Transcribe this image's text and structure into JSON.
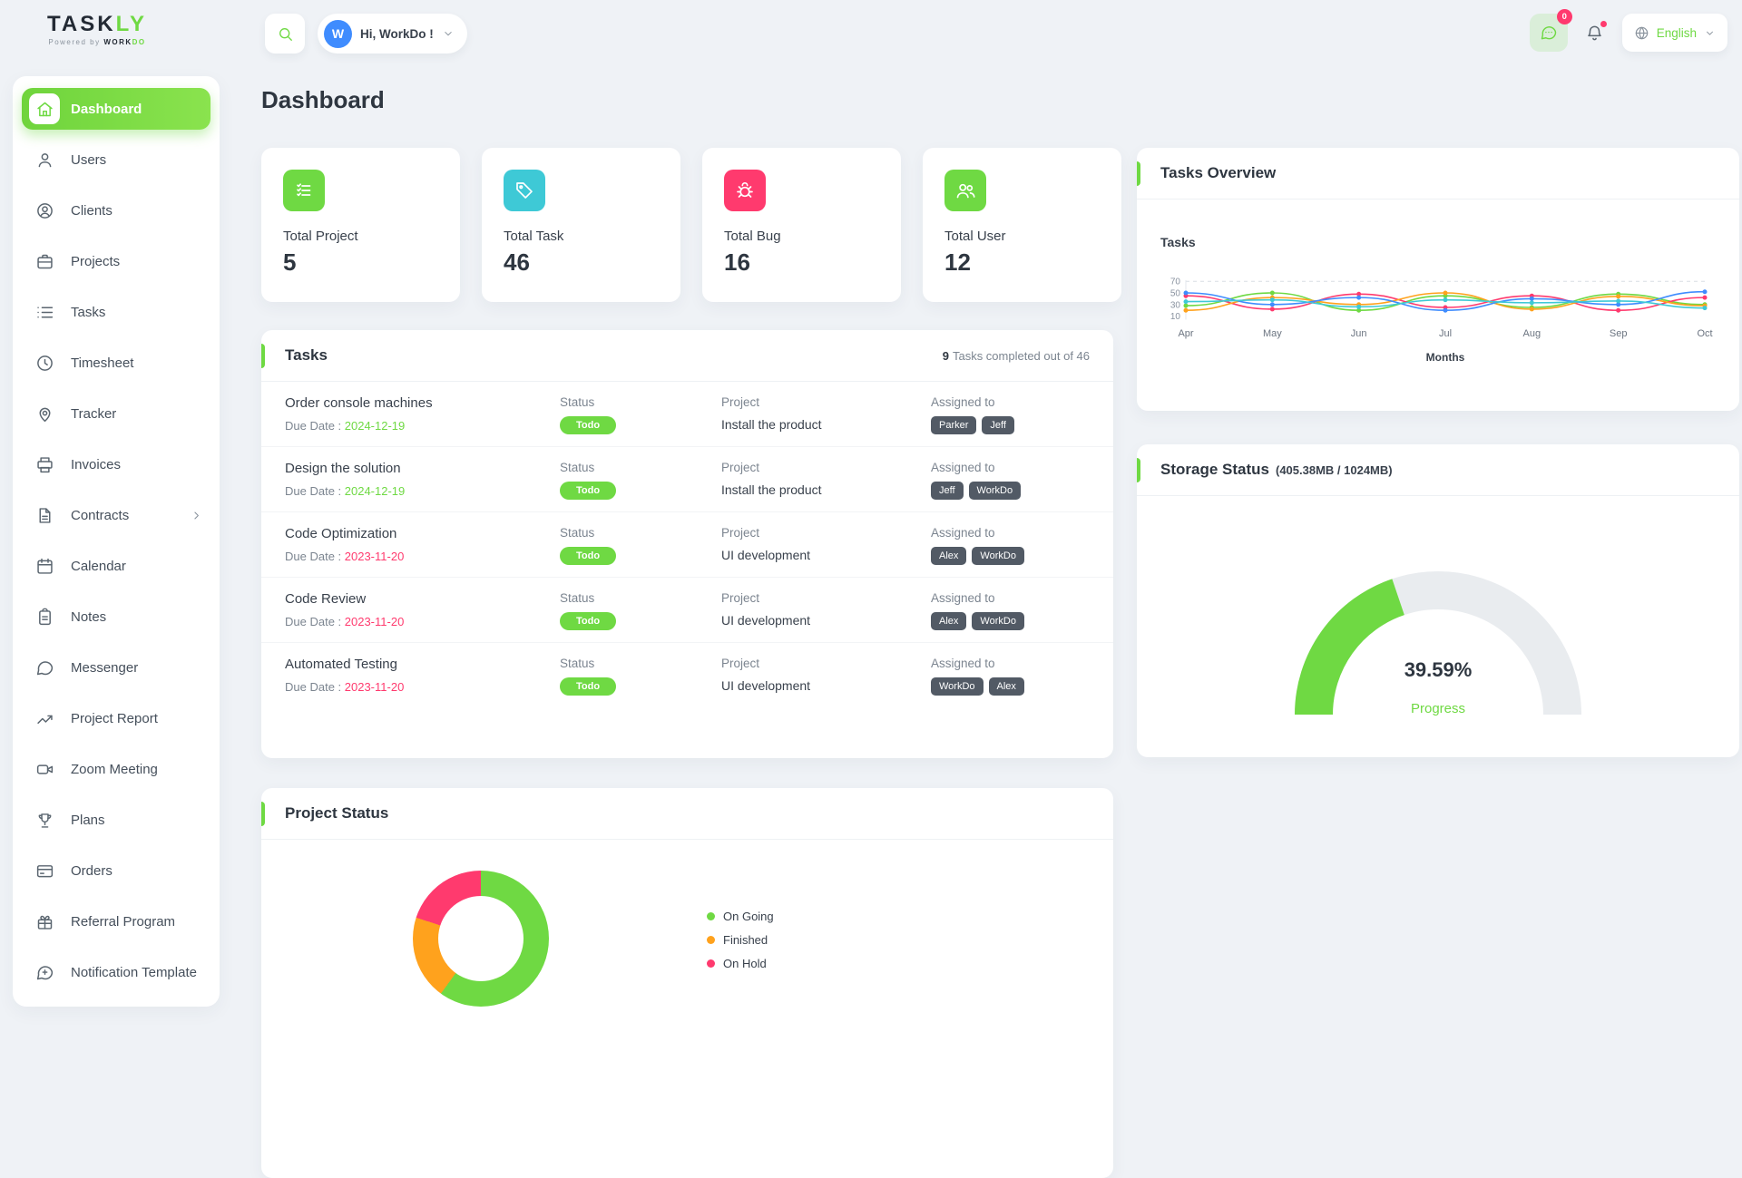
{
  "colors": {
    "accent": "#6fd943",
    "danger": "#ff3a6e",
    "warning": "#ffa21d",
    "info": "#3ec9d6",
    "chip_dark": "#525a65",
    "avatar_bg": "#3f8cfe"
  },
  "header": {
    "logo_main": "TASK",
    "logo_accent": "LY",
    "logo_sub_prefix": "Powered by ",
    "logo_sub_brand": "WORK",
    "logo_sub_brand_accent": "DO",
    "greeting": "Hi, WorkDo !",
    "avatar_letter": "W",
    "chat_badge": "0",
    "language": "English"
  },
  "sidebar": {
    "items": [
      {
        "label": "Dashboard",
        "icon": "home",
        "active": true
      },
      {
        "label": "Users",
        "icon": "user"
      },
      {
        "label": "Clients",
        "icon": "user-circle"
      },
      {
        "label": "Projects",
        "icon": "briefcase"
      },
      {
        "label": "Tasks",
        "icon": "list"
      },
      {
        "label": "Timesheet",
        "icon": "clock"
      },
      {
        "label": "Tracker",
        "icon": "pin"
      },
      {
        "label": "Invoices",
        "icon": "printer"
      },
      {
        "label": "Contracts",
        "icon": "file",
        "chevron": true
      },
      {
        "label": "Calendar",
        "icon": "calendar"
      },
      {
        "label": "Notes",
        "icon": "clipboard"
      },
      {
        "label": "Messenger",
        "icon": "message"
      },
      {
        "label": "Project Report",
        "icon": "chart-up"
      },
      {
        "label": "Zoom Meeting",
        "icon": "video"
      },
      {
        "label": "Plans",
        "icon": "trophy"
      },
      {
        "label": "Orders",
        "icon": "card"
      },
      {
        "label": "Referral Program",
        "icon": "gift"
      },
      {
        "label": "Notification Template",
        "icon": "message-plus"
      }
    ]
  },
  "page_title": "Dashboard",
  "stats": [
    {
      "label": "Total Project",
      "value": "5",
      "icon": "list-check",
      "color": "#6fd943"
    },
    {
      "label": "Total Task",
      "value": "46",
      "icon": "tag",
      "color": "#3ec9d6"
    },
    {
      "label": "Total Bug",
      "value": "16",
      "icon": "bug",
      "color": "#ff3a6e"
    },
    {
      "label": "Total User",
      "value": "12",
      "icon": "users-group",
      "color": "#6fd943"
    }
  ],
  "tasks_section": {
    "title": "Tasks",
    "summary_count": "9",
    "summary_text": "Tasks completed out of 46",
    "labels": {
      "due": "Due Date :",
      "status": "Status",
      "project": "Project",
      "assigned": "Assigned to"
    },
    "rows": [
      {
        "name": "Order console machines",
        "due": "2024-12-19",
        "due_state": "ok",
        "status": "Todo",
        "project": "Install the product",
        "assignees": [
          "Parker",
          "Jeff"
        ]
      },
      {
        "name": "Design the solution",
        "due": "2024-12-19",
        "due_state": "ok",
        "status": "Todo",
        "project": "Install the product",
        "assignees": [
          "Jeff",
          "WorkDo"
        ]
      },
      {
        "name": "Code Optimization",
        "due": "2023-11-20",
        "due_state": "overdue",
        "status": "Todo",
        "project": "UI development",
        "assignees": [
          "Alex",
          "WorkDo"
        ]
      },
      {
        "name": "Code Review",
        "due": "2023-11-20",
        "due_state": "overdue",
        "status": "Todo",
        "project": "UI development",
        "assignees": [
          "Alex",
          "WorkDo"
        ]
      },
      {
        "name": "Automated Testing",
        "due": "2023-11-20",
        "due_state": "overdue",
        "status": "Todo",
        "project": "UI development",
        "assignees": [
          "WorkDo",
          "Alex"
        ]
      }
    ]
  },
  "project_status": {
    "title": "Project Status",
    "legend": [
      {
        "label": "On Going",
        "color": "#6fd943",
        "value": 3
      },
      {
        "label": "Finished",
        "color": "#ffa21d",
        "value": 1
      },
      {
        "label": "On Hold",
        "color": "#ff3a6e",
        "value": 1
      }
    ]
  },
  "tasks_overview": {
    "title": "Tasks Overview",
    "ylabel": "Tasks",
    "xlabel": "Months"
  },
  "storage": {
    "title": "Storage Status",
    "subtitle": "(405.38MB / 1024MB)",
    "percent": "39.59%",
    "label": "Progress"
  },
  "chart_data": [
    {
      "type": "line",
      "title": "Tasks Overview",
      "x": [
        "Apr",
        "May",
        "Jun",
        "Jul",
        "Aug",
        "Sep",
        "Oct"
      ],
      "yticks": [
        70,
        50,
        30,
        10
      ],
      "ylim": [
        0,
        75
      ],
      "xlabel": "Months",
      "ylabel": "Tasks",
      "grid": "dashed-top",
      "series": [
        {
          "name": "series-green",
          "color": "#6fd943",
          "values": [
            28,
            50,
            20,
            45,
            25,
            48,
            30
          ]
        },
        {
          "name": "series-red",
          "color": "#ff3a6e",
          "values": [
            45,
            22,
            48,
            25,
            45,
            20,
            42
          ]
        },
        {
          "name": "series-orange",
          "color": "#ffa21d",
          "values": [
            20,
            42,
            30,
            50,
            22,
            44,
            28
          ]
        },
        {
          "name": "series-blue",
          "color": "#3f8cfe",
          "values": [
            50,
            30,
            42,
            20,
            40,
            30,
            52
          ]
        },
        {
          "name": "series-cyan",
          "color": "#3ec9d6",
          "values": [
            35,
            38,
            26,
            38,
            33,
            36,
            24
          ]
        }
      ]
    },
    {
      "type": "pie",
      "title": "Project Status",
      "labels": [
        "On Going",
        "Finished",
        "On Hold"
      ],
      "values": [
        3,
        1,
        1
      ],
      "colors": [
        "#6fd943",
        "#ffa21d",
        "#ff3a6e"
      ]
    },
    {
      "type": "gauge",
      "title": "Storage Status",
      "percent": 39.59,
      "used_label": "405.38MB",
      "max_label": "1024MB"
    }
  ]
}
